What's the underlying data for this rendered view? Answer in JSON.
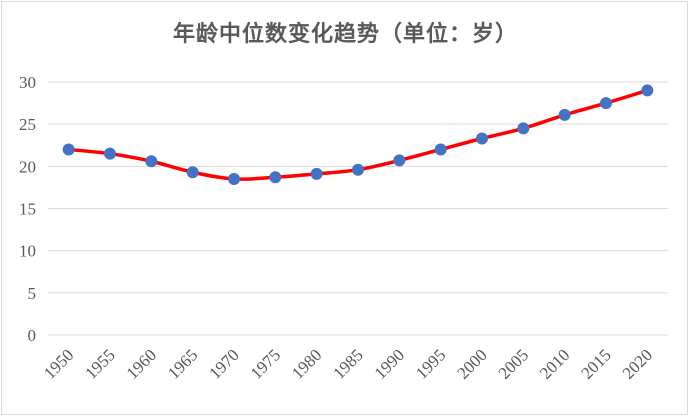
{
  "chart_data": {
    "type": "line",
    "title": "年龄中位数变化趋势（单位：岁）",
    "xlabel": "",
    "ylabel": "",
    "categories": [
      "1950",
      "1955",
      "1960",
      "1965",
      "1970",
      "1975",
      "1980",
      "1985",
      "1990",
      "1995",
      "2000",
      "2005",
      "2010",
      "2015",
      "2020"
    ],
    "yticks": [
      "0",
      "5",
      "10",
      "15",
      "20",
      "25",
      "30"
    ],
    "ylim": [
      0,
      30
    ],
    "grid": true,
    "legend": "none",
    "series": [
      {
        "values": [
          22.0,
          21.5,
          20.6,
          19.3,
          18.5,
          18.7,
          19.1,
          19.6,
          20.7,
          22.0,
          23.3,
          24.5,
          26.1,
          27.5,
          29.0
        ],
        "line_color": "#ff0000",
        "marker_color": "#4472c4"
      }
    ]
  }
}
